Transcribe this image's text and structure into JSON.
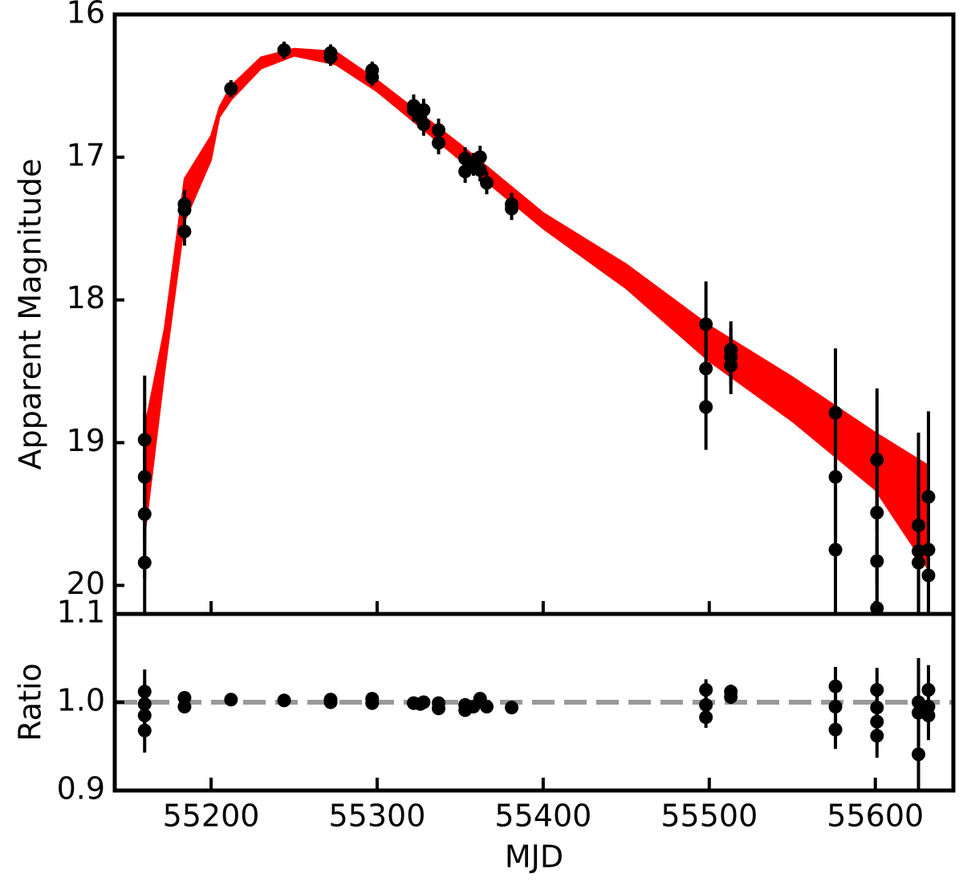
{
  "chart_data": [
    {
      "type": "errorbar",
      "y_label": "Apparent Magnitude",
      "xlim": [
        55142,
        55647
      ],
      "xticks": [
        55200,
        55300,
        55400,
        55500,
        55600
      ],
      "ylim": [
        20.2,
        16
      ],
      "yticks": [
        16,
        17,
        18,
        19,
        20
      ],
      "y_inverted": true,
      "band": {
        "color": "#ff0000",
        "x": [
          55160,
          55172,
          55184,
          55200,
          55205,
          55212,
          55230,
          55250,
          55275,
          55300,
          55350,
          55400,
          55450,
          55500,
          55550,
          55600,
          55632
        ],
        "lower": [
          18.9,
          18.2,
          17.15,
          16.85,
          16.65,
          16.5,
          16.3,
          16.24,
          16.26,
          16.46,
          16.91,
          17.39,
          17.75,
          18.18,
          18.54,
          18.93,
          19.16
        ],
        "upper": [
          19.65,
          18.5,
          17.45,
          17.02,
          16.72,
          16.6,
          16.38,
          16.29,
          16.35,
          16.54,
          17.02,
          17.5,
          17.92,
          18.43,
          18.85,
          19.33,
          19.89
        ]
      },
      "points": {
        "color": "#000000",
        "x": [
          55160,
          55160,
          55160,
          55160,
          55184,
          55184,
          55184,
          55212,
          55244,
          55272,
          55272,
          55297,
          55297,
          55322,
          55322,
          55326,
          55328,
          55328,
          55337,
          55337,
          55353,
          55353,
          55358,
          55362,
          55362,
          55366,
          55381,
          55381,
          55498,
          55498,
          55498,
          55513,
          55513,
          55513,
          55576,
          55576,
          55576,
          55601,
          55601,
          55601,
          55601,
          55626,
          55626,
          55626,
          55632,
          55632,
          55632
        ],
        "values": [
          18.98,
          19.24,
          19.5,
          19.84,
          17.33,
          17.37,
          17.52,
          16.52,
          16.25,
          16.27,
          16.3,
          16.39,
          16.44,
          16.64,
          16.67,
          16.72,
          16.67,
          16.77,
          16.81,
          16.9,
          17.01,
          17.1,
          17.05,
          17.0,
          17.09,
          17.18,
          17.33,
          17.36,
          18.17,
          18.48,
          18.75,
          18.35,
          18.4,
          18.46,
          18.79,
          19.24,
          19.75,
          19.12,
          19.49,
          19.83,
          20.16,
          19.58,
          19.76,
          19.84,
          19.38,
          19.75,
          19.93
        ],
        "errors": [
          0.45,
          0.45,
          0.45,
          0.45,
          0.1,
          0.1,
          0.1,
          0.06,
          0.06,
          0.06,
          0.06,
          0.06,
          0.06,
          0.08,
          0.08,
          0.08,
          0.08,
          0.08,
          0.08,
          0.08,
          0.08,
          0.08,
          0.08,
          0.08,
          0.08,
          0.08,
          0.08,
          0.08,
          0.3,
          0.3,
          0.3,
          0.2,
          0.2,
          0.2,
          0.45,
          0.45,
          0.45,
          0.5,
          0.5,
          0.5,
          0.5,
          0.65,
          0.65,
          0.65,
          0.6,
          0.6,
          0.6
        ]
      }
    },
    {
      "type": "errorbar",
      "x_label": "MJD",
      "y_label": "Ratio",
      "xlim": [
        55142,
        55647
      ],
      "xticks": [
        55200,
        55300,
        55400,
        55500,
        55600
      ],
      "ylim": [
        0.9,
        1.1
      ],
      "yticks": [
        0.9,
        {
          "value": 1.0,
          "label": "1.0"
        },
        1.1
      ],
      "reference_line": {
        "value": 1.0,
        "color": "#999999",
        "style": "dashed"
      },
      "points": {
        "color": "#000000",
        "x": [
          55160,
          55160,
          55160,
          55160,
          55184,
          55184,
          55212,
          55244,
          55272,
          55272,
          55297,
          55297,
          55322,
          55326,
          55328,
          55337,
          55337,
          55353,
          55353,
          55358,
          55362,
          55366,
          55381,
          55498,
          55498,
          55498,
          55513,
          55513,
          55576,
          55576,
          55576,
          55601,
          55601,
          55601,
          55601,
          55626,
          55626,
          55626,
          55632,
          55632,
          55632
        ],
        "values": [
          1.012,
          0.998,
          0.985,
          0.968,
          1.005,
          0.995,
          1.003,
          1.002,
          1.003,
          1.0,
          1.004,
          0.999,
          0.999,
          0.998,
          1.0,
          0.999,
          0.993,
          0.997,
          0.991,
          0.995,
          1.004,
          0.995,
          0.994,
          1.014,
          0.997,
          0.983,
          1.012,
          1.006,
          1.018,
          0.995,
          0.969,
          1.014,
          0.994,
          0.978,
          0.962,
          1.0,
          0.988,
          0.941,
          1.014,
          0.995,
          0.985
        ],
        "errors": [
          0.025,
          0.025,
          0.025,
          0.025,
          0.006,
          0.006,
          0.004,
          0.004,
          0.004,
          0.004,
          0.004,
          0.004,
          0.004,
          0.004,
          0.004,
          0.004,
          0.004,
          0.004,
          0.004,
          0.004,
          0.004,
          0.004,
          0.004,
          0.012,
          0.012,
          0.012,
          0.008,
          0.008,
          0.022,
          0.022,
          0.022,
          0.025,
          0.025,
          0.025,
          0.025,
          0.05,
          0.05,
          0.05,
          0.028,
          0.028,
          0.028
        ]
      }
    }
  ]
}
